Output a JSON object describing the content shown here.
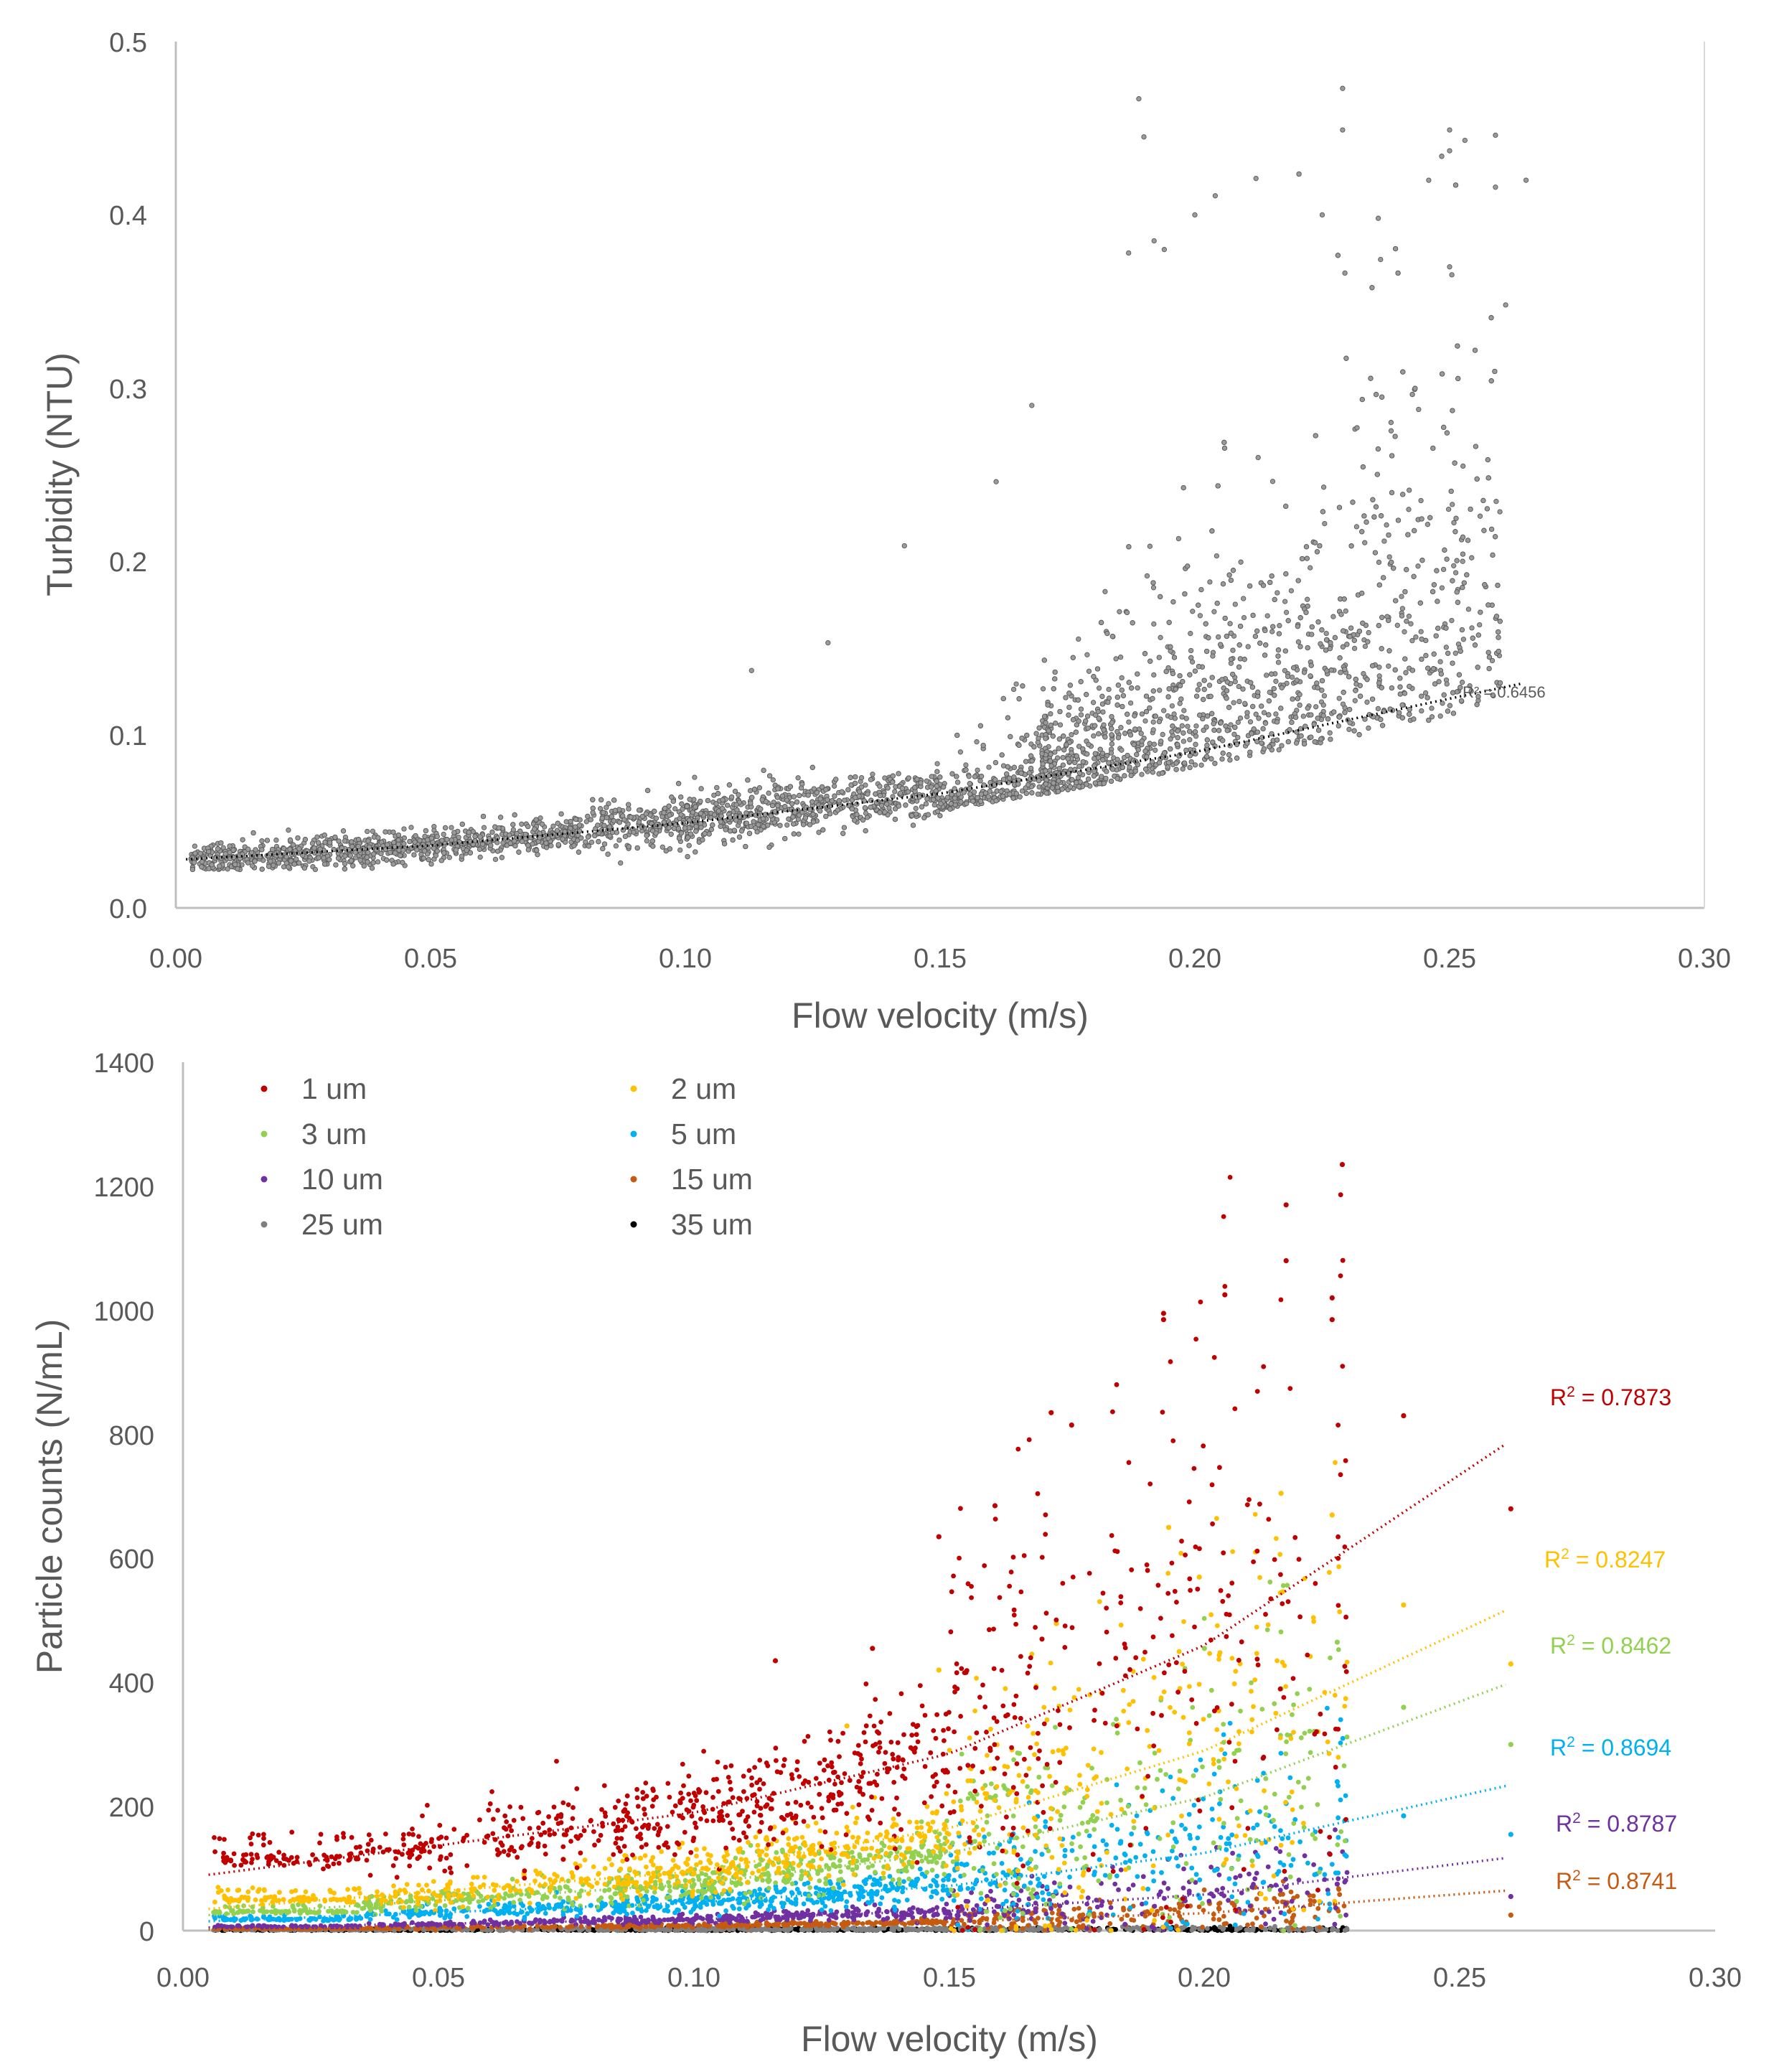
{
  "chart_data": [
    {
      "type": "scatter",
      "title": "",
      "xlabel": "Flow velocity (m/s)",
      "ylabel": "Turbidity (NTU)",
      "xlim": [
        0,
        0.3
      ],
      "ylim": [
        0,
        0.5
      ],
      "xticks": [
        "0.00",
        "0.05",
        "0.10",
        "0.15",
        "0.20",
        "0.25",
        "0.30"
      ],
      "yticks": [
        "0.0",
        "0.1",
        "0.2",
        "0.3",
        "0.4",
        "0.5"
      ],
      "series": [
        {
          "name": "Turbidity",
          "color": "#7f7f7f",
          "trend": "exponential",
          "trend_x_range": [
            0.002,
            0.265
          ],
          "trend_points": [
            [
              0.002,
              0.028
            ],
            [
              0.05,
              0.036
            ],
            [
              0.1,
              0.049
            ],
            [
              0.15,
              0.066
            ],
            [
              0.2,
              0.09
            ],
            [
              0.265,
              0.13
            ]
          ],
          "r2": "R² = 0.6456",
          "r2_position": [
            0.28,
            0.128
          ],
          "highlight_points": [
            [
              0.189,
              0.467
            ],
            [
              0.19,
              0.445
            ],
            [
              0.229,
              0.473
            ],
            [
              0.229,
              0.449
            ],
            [
              0.25,
              0.449
            ],
            [
              0.253,
              0.443
            ],
            [
              0.25,
              0.437
            ],
            [
              0.259,
              0.446
            ],
            [
              0.259,
              0.416
            ],
            [
              0.265,
              0.42
            ],
            [
              0.212,
              0.421
            ],
            [
              0.204,
              0.411
            ],
            [
              0.2,
              0.4
            ],
            [
              0.225,
              0.4
            ],
            [
              0.236,
              0.398
            ],
            [
              0.192,
              0.385
            ],
            [
              0.194,
              0.38
            ],
            [
              0.187,
              0.378
            ],
            [
              0.25,
              0.37
            ],
            [
              0.261,
              0.348
            ],
            [
              0.168,
              0.29
            ],
            [
              0.161,
              0.246
            ],
            [
              0.143,
              0.209
            ],
            [
              0.113,
              0.137
            ],
            [
              0.128,
              0.153
            ]
          ]
        }
      ]
    },
    {
      "type": "scatter",
      "title": "",
      "xlabel": "Flow velocity (m/s)",
      "ylabel": "Particle counts (N/mL)",
      "xlim": [
        0,
        0.3
      ],
      "ylim": [
        0,
        1400
      ],
      "xticks": [
        "0.00",
        "0.05",
        "0.10",
        "0.15",
        "0.20",
        "0.25",
        "0.30"
      ],
      "yticks": [
        "0",
        "200",
        "400",
        "600",
        "800",
        "1000",
        "1200",
        "1400"
      ],
      "legend": [
        "1 um",
        "2 um",
        "3 um",
        "5 um",
        "10 um",
        "15 um",
        "25 um",
        "35 um"
      ],
      "series": [
        {
          "name": "1 um",
          "color": "#c00000",
          "base": 115,
          "trend": [
            [
              0.005,
              90
            ],
            [
              0.1,
              190
            ],
            [
              0.15,
              285
            ],
            [
              0.2,
              460
            ],
            [
              0.26,
              790
            ]
          ],
          "r2": "0.7873",
          "r2_position": [
            0.271,
            860
          ],
          "highlight_points": [
            [
              0.227,
              1235
            ],
            [
              0.216,
              1170
            ],
            [
              0.216,
              1080
            ],
            [
              0.225,
              1020
            ],
            [
              0.225,
              985
            ],
            [
              0.192,
              995
            ],
            [
              0.192,
              985
            ],
            [
              0.204,
              1025
            ],
            [
              0.239,
              830
            ],
            [
              0.26,
              680
            ],
            [
              0.17,
              835
            ],
            [
              0.174,
              815
            ],
            [
              0.159,
              685
            ],
            [
              0.116,
              435
            ],
            [
              0.135,
              455
            ],
            [
              0.148,
              635
            ]
          ]
        },
        {
          "name": "2 um",
          "color": "#ffc000",
          "base": 50,
          "trend": [
            [
              0.005,
              35
            ],
            [
              0.1,
              95
            ],
            [
              0.15,
              165
            ],
            [
              0.2,
              290
            ],
            [
              0.26,
              520
            ]
          ],
          "r2": "0.8247",
          "r2_position": [
            0.271,
            590
          ],
          "highlight_points": [
            [
              0.215,
              705
            ],
            [
              0.225,
              670
            ],
            [
              0.193,
              650
            ],
            [
              0.199,
              570
            ],
            [
              0.239,
              525
            ],
            [
              0.26,
              430
            ],
            [
              0.171,
              495
            ],
            [
              0.148,
              420
            ],
            [
              0.13,
              330
            ]
          ]
        },
        {
          "name": "3 um",
          "color": "#92d050",
          "base": 30,
          "trend": [
            [
              0.005,
              25
            ],
            [
              0.1,
              75
            ],
            [
              0.15,
              125
            ],
            [
              0.2,
              215
            ],
            [
              0.26,
              400
            ]
          ],
          "r2": "0.8462",
          "r2_position": [
            0.271,
            450
          ],
          "highlight_points": [
            [
              0.226,
              465
            ],
            [
              0.2,
              455
            ],
            [
              0.239,
              360
            ],
            [
              0.26,
              300
            ],
            [
              0.215,
              390
            ]
          ]
        },
        {
          "name": "5 um",
          "color": "#00b0f0",
          "base": 18,
          "trend": [
            [
              0.005,
              15
            ],
            [
              0.1,
              45
            ],
            [
              0.15,
              72
            ],
            [
              0.2,
              125
            ],
            [
              0.26,
              235
            ]
          ],
          "r2": "0.8694",
          "r2_position": [
            0.271,
            285
          ],
          "highlight_points": [
            [
              0.226,
              240
            ],
            [
              0.239,
              185
            ],
            [
              0.26,
              155
            ],
            [
              0.216,
              205
            ]
          ]
        },
        {
          "name": "10 um",
          "color": "#7030a0",
          "base": 6,
          "trend": [
            [
              0.005,
              5
            ],
            [
              0.1,
              18
            ],
            [
              0.15,
              32
            ],
            [
              0.2,
              58
            ],
            [
              0.26,
              118
            ]
          ],
          "r2": "0.8787",
          "r2_position": [
            0.271,
            165
          ],
          "highlight_points": [
            [
              0.26,
              55
            ],
            [
              0.226,
              75
            ],
            [
              0.216,
              70
            ]
          ]
        },
        {
          "name": "15 um",
          "color": "#c55a11",
          "base": 3,
          "trend": [
            [
              0.005,
              2
            ],
            [
              0.1,
              8
            ],
            [
              0.15,
              14
            ],
            [
              0.2,
              28
            ],
            [
              0.26,
              65
            ]
          ],
          "r2": "0.8741",
          "r2_position": [
            0.271,
            75
          ],
          "highlight_points": [
            [
              0.26,
              25
            ],
            [
              0.226,
              35
            ]
          ]
        },
        {
          "name": "25 um",
          "color": "#7f7f7f",
          "base": 1,
          "trend": null,
          "r2": null,
          "highlight_points": []
        },
        {
          "name": "35 um",
          "color": "#000000",
          "base": 0,
          "trend": null,
          "r2": null,
          "highlight_points": []
        }
      ]
    }
  ]
}
